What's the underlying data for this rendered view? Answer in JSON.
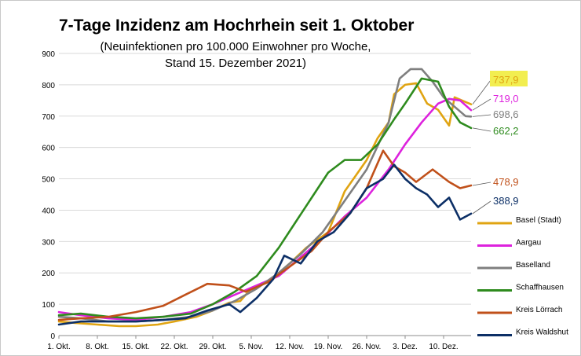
{
  "chart_data": {
    "type": "line",
    "title": "7-Tage Inzidenz am Hochrhein seit 1. Oktober",
    "subtitle_line1": "(Neuinfektionen pro 100.000 Einwohner pro Woche,",
    "subtitle_line2": "Stand 15. Dezember 2021)",
    "xlabel": "",
    "ylabel": "",
    "ylim": [
      0,
      900
    ],
    "yticks": [
      "0",
      "100",
      "200",
      "300",
      "400",
      "500",
      "600",
      "700",
      "800",
      "900"
    ],
    "x_start": "2021-10-01",
    "x_end": "2021-12-15",
    "xticks": [
      {
        "label": "1. Okt.",
        "date": "2021-10-01"
      },
      {
        "label": "8. Okt.",
        "date": "2021-10-08"
      },
      {
        "label": "15. Okt.",
        "date": "2021-10-15"
      },
      {
        "label": "22. Okt.",
        "date": "2021-10-22"
      },
      {
        "label": "29. Okt.",
        "date": "2021-10-29"
      },
      {
        "label": "5. Nov.",
        "date": "2021-11-05"
      },
      {
        "label": "12. Nov.",
        "date": "2021-11-12"
      },
      {
        "label": "19. Nov.",
        "date": "2021-11-19"
      },
      {
        "label": "26. Nov.",
        "date": "2021-11-26"
      },
      {
        "label": "3. Dez.",
        "date": "2021-12-03"
      },
      {
        "label": "10. Dez.",
        "date": "2021-12-10"
      }
    ],
    "grid": "horizontal",
    "legend_position": "right",
    "series": [
      {
        "name": "Basel (Stadt)",
        "color": "#e0a412",
        "end_label": "737,9",
        "end_label_highlight": "#f2ee50",
        "points": [
          [
            "2021-10-01",
            45
          ],
          [
            "2021-10-04",
            40
          ],
          [
            "2021-10-08",
            35
          ],
          [
            "2021-10-12",
            30
          ],
          [
            "2021-10-15",
            30
          ],
          [
            "2021-10-19",
            35
          ],
          [
            "2021-10-22",
            45
          ],
          [
            "2021-10-26",
            60
          ],
          [
            "2021-10-29",
            80
          ],
          [
            "2021-11-01",
            105
          ],
          [
            "2021-11-03",
            110
          ],
          [
            "2021-11-05",
            150
          ],
          [
            "2021-11-08",
            170
          ],
          [
            "2021-11-12",
            230
          ],
          [
            "2021-11-15",
            280
          ],
          [
            "2021-11-19",
            330
          ],
          [
            "2021-11-22",
            460
          ],
          [
            "2021-11-24",
            510
          ],
          [
            "2021-11-26",
            560
          ],
          [
            "2021-11-28",
            630
          ],
          [
            "2021-11-30",
            680
          ],
          [
            "2021-12-01",
            770
          ],
          [
            "2021-12-03",
            800
          ],
          [
            "2021-12-05",
            805
          ],
          [
            "2021-12-07",
            740
          ],
          [
            "2021-12-09",
            720
          ],
          [
            "2021-12-11",
            670
          ],
          [
            "2021-12-12",
            760
          ],
          [
            "2021-12-14",
            745
          ],
          [
            "2021-12-15",
            737.9
          ]
        ]
      },
      {
        "name": "Aargau",
        "color": "#dd22dd",
        "end_label": "719,0",
        "points": [
          [
            "2021-10-01",
            75
          ],
          [
            "2021-10-05",
            65
          ],
          [
            "2021-10-10",
            55
          ],
          [
            "2021-10-15",
            50
          ],
          [
            "2021-10-20",
            60
          ],
          [
            "2021-10-25",
            75
          ],
          [
            "2021-10-29",
            100
          ],
          [
            "2021-11-02",
            130
          ],
          [
            "2021-11-06",
            160
          ],
          [
            "2021-11-10",
            190
          ],
          [
            "2021-11-14",
            250
          ],
          [
            "2021-11-18",
            310
          ],
          [
            "2021-11-22",
            380
          ],
          [
            "2021-11-26",
            440
          ],
          [
            "2021-11-30",
            530
          ],
          [
            "2021-12-03",
            610
          ],
          [
            "2021-12-06",
            680
          ],
          [
            "2021-12-09",
            740
          ],
          [
            "2021-12-11",
            755
          ],
          [
            "2021-12-13",
            750
          ],
          [
            "2021-12-15",
            719
          ]
        ]
      },
      {
        "name": "Baselland",
        "color": "#7f7f7f",
        "end_label": "698,6",
        "points": [
          [
            "2021-10-01",
            60
          ],
          [
            "2021-10-05",
            55
          ],
          [
            "2021-10-10",
            45
          ],
          [
            "2021-10-15",
            45
          ],
          [
            "2021-10-20",
            50
          ],
          [
            "2021-10-25",
            60
          ],
          [
            "2021-10-29",
            80
          ],
          [
            "2021-11-02",
            110
          ],
          [
            "2021-11-06",
            150
          ],
          [
            "2021-11-10",
            200
          ],
          [
            "2021-11-14",
            260
          ],
          [
            "2021-11-18",
            330
          ],
          [
            "2021-11-22",
            430
          ],
          [
            "2021-11-26",
            530
          ],
          [
            "2021-11-30",
            680
          ],
          [
            "2021-12-02",
            820
          ],
          [
            "2021-12-04",
            850
          ],
          [
            "2021-12-06",
            850
          ],
          [
            "2021-12-08",
            810
          ],
          [
            "2021-12-10",
            760
          ],
          [
            "2021-12-12",
            730
          ],
          [
            "2021-12-14",
            700
          ],
          [
            "2021-12-15",
            698.6
          ]
        ]
      },
      {
        "name": "Schaffhausen",
        "color": "#2e8b1e",
        "end_label": "662,2",
        "points": [
          [
            "2021-10-01",
            65
          ],
          [
            "2021-10-05",
            70
          ],
          [
            "2021-10-10",
            60
          ],
          [
            "2021-10-15",
            55
          ],
          [
            "2021-10-20",
            60
          ],
          [
            "2021-10-25",
            70
          ],
          [
            "2021-10-29",
            100
          ],
          [
            "2021-11-02",
            140
          ],
          [
            "2021-11-06",
            190
          ],
          [
            "2021-11-10",
            280
          ],
          [
            "2021-11-13",
            360
          ],
          [
            "2021-11-16",
            440
          ],
          [
            "2021-11-19",
            520
          ],
          [
            "2021-11-22",
            560
          ],
          [
            "2021-11-25",
            560
          ],
          [
            "2021-11-28",
            610
          ],
          [
            "2021-12-01",
            690
          ],
          [
            "2021-12-03",
            740
          ],
          [
            "2021-12-06",
            820
          ],
          [
            "2021-12-09",
            810
          ],
          [
            "2021-12-11",
            730
          ],
          [
            "2021-12-13",
            680
          ],
          [
            "2021-12-15",
            662.2
          ]
        ]
      },
      {
        "name": "Kreis Lörrach",
        "color": "#c0501a",
        "end_label": "478,9",
        "points": [
          [
            "2021-10-01",
            50
          ],
          [
            "2021-10-05",
            55
          ],
          [
            "2021-10-10",
            60
          ],
          [
            "2021-10-15",
            75
          ],
          [
            "2021-10-20",
            95
          ],
          [
            "2021-10-24",
            130
          ],
          [
            "2021-10-28",
            165
          ],
          [
            "2021-11-01",
            160
          ],
          [
            "2021-11-04",
            140
          ],
          [
            "2021-11-08",
            170
          ],
          [
            "2021-11-12",
            220
          ],
          [
            "2021-11-16",
            270
          ],
          [
            "2021-11-19",
            330
          ],
          [
            "2021-11-23",
            390
          ],
          [
            "2021-11-26",
            470
          ],
          [
            "2021-11-29",
            590
          ],
          [
            "2021-12-01",
            540
          ],
          [
            "2021-12-03",
            520
          ],
          [
            "2021-12-05",
            490
          ],
          [
            "2021-12-08",
            530
          ],
          [
            "2021-12-11",
            490
          ],
          [
            "2021-12-13",
            470
          ],
          [
            "2021-12-15",
            478.9
          ]
        ]
      },
      {
        "name": "Kreis Waldshut",
        "color": "#0c2f66",
        "end_label": "388,9",
        "points": [
          [
            "2021-10-01",
            35
          ],
          [
            "2021-10-05",
            45
          ],
          [
            "2021-10-10",
            45
          ],
          [
            "2021-10-15",
            45
          ],
          [
            "2021-10-20",
            50
          ],
          [
            "2021-10-24",
            55
          ],
          [
            "2021-10-28",
            80
          ],
          [
            "2021-11-01",
            100
          ],
          [
            "2021-11-03",
            75
          ],
          [
            "2021-11-06",
            120
          ],
          [
            "2021-11-09",
            180
          ],
          [
            "2021-11-11",
            255
          ],
          [
            "2021-11-14",
            230
          ],
          [
            "2021-11-17",
            300
          ],
          [
            "2021-11-20",
            330
          ],
          [
            "2021-11-23",
            390
          ],
          [
            "2021-11-26",
            470
          ],
          [
            "2021-11-29",
            500
          ],
          [
            "2021-12-01",
            545
          ],
          [
            "2021-12-03",
            500
          ],
          [
            "2021-12-05",
            470
          ],
          [
            "2021-12-07",
            450
          ],
          [
            "2021-12-09",
            410
          ],
          [
            "2021-12-11",
            440
          ],
          [
            "2021-12-13",
            370
          ],
          [
            "2021-12-15",
            388.9
          ]
        ]
      }
    ]
  }
}
